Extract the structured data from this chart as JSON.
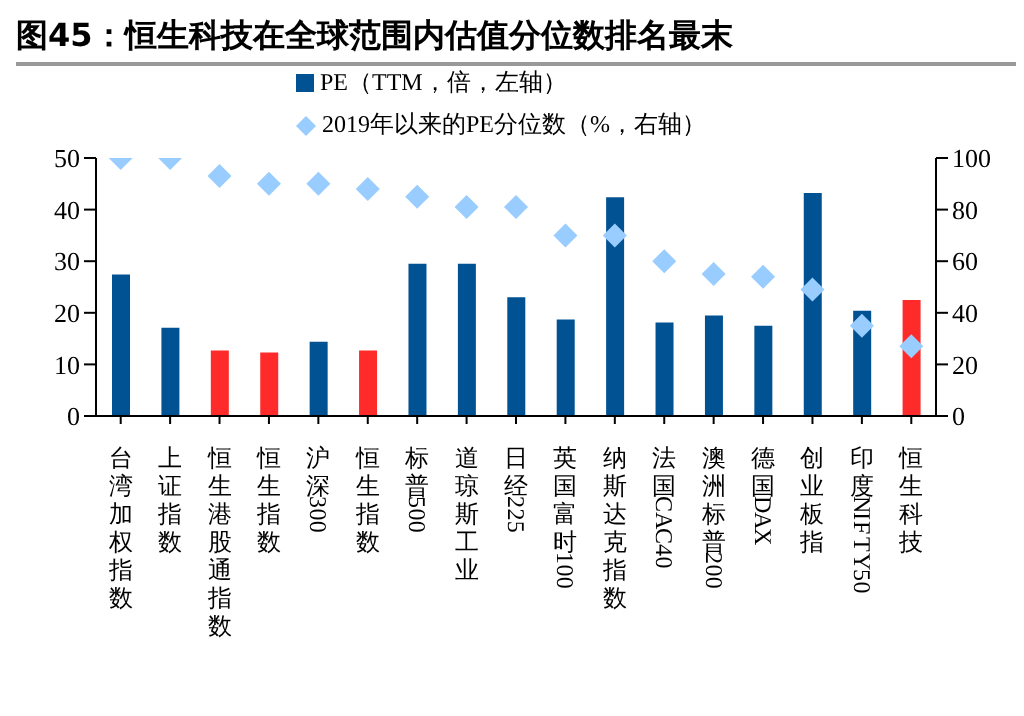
{
  "chart_data": {
    "type": "bar",
    "title": "图45：恒生科技在全球范围内估值分位数排名最末",
    "categories": [
      "台湾加权指数",
      "上证指数",
      "恒生港股通指数",
      "恒生指数",
      "沪深300",
      "恒生指数",
      "标普500",
      "道琼斯工业",
      "日经225",
      "英国富时100",
      "纳斯达克指数",
      "法国CAC40",
      "澳洲标普200",
      "德国DAX",
      "创业板指",
      "印度NIFTY50",
      "恒生科技"
    ],
    "series": [
      {
        "name": "PE（TTM，倍，左轴）",
        "color": "#005293",
        "colors": [
          "#005293",
          "#005293",
          "#ff2a2a",
          "#ff2a2a",
          "#005293",
          "#ff2a2a",
          "#005293",
          "#005293",
          "#005293",
          "#005293",
          "#005293",
          "#005293",
          "#005293",
          "#005293",
          "#005293",
          "#005293",
          "#ff2a2a"
        ],
        "values": [
          27.4,
          17.1,
          12.7,
          12.3,
          14.4,
          12.7,
          29.5,
          29.5,
          23.0,
          18.7,
          42.4,
          18.1,
          19.5,
          17.5,
          43.2,
          20.4,
          22.5
        ]
      },
      {
        "name": "2019年以来的PE分位数（%，右轴）",
        "type": "scatter",
        "axis": "y2",
        "marker": "diamond",
        "color": "#99ccff",
        "values": [
          100,
          100,
          93,
          90,
          90,
          88,
          85,
          81,
          81,
          70,
          70,
          60,
          55,
          54,
          49,
          35,
          27
        ]
      }
    ],
    "ylim": [
      0,
      50
    ],
    "yticks": [
      0,
      10,
      20,
      30,
      40,
      50
    ],
    "y2lim": [
      0,
      100
    ],
    "y2ticks": [
      0,
      20,
      40,
      60,
      80,
      100
    ],
    "grid": false,
    "legend": "top"
  }
}
